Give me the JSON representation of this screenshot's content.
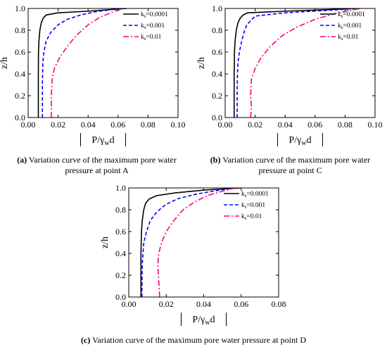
{
  "figure": {
    "captions": [
      {
        "letter": "(a)",
        "text_line1": " Variation curve of the maximum pore water",
        "text_line2": "pressure at point A"
      },
      {
        "letter": "(b)",
        "text_line1": " Variation curve of the maximum pore water",
        "text_line2": "pressure at point C"
      },
      {
        "letter": "(c)",
        "text_line1": " Variation curve of the maximum pore water pressure at point D",
        "text_line2": ""
      }
    ]
  },
  "chart_data": [
    {
      "type": "line",
      "title": "",
      "xlabel": "|P/γ_w d|",
      "xlabel_parts": {
        "main": "P/γ",
        "sub": "w",
        "tail": "d"
      },
      "ylabel": "z/h",
      "xlim": [
        0,
        0.1
      ],
      "ylim": [
        0,
        1.0
      ],
      "xticks": [
        "0.00",
        "0.02",
        "0.04",
        "0.06",
        "0.08",
        "0.10"
      ],
      "yticks": [
        "0.0",
        "0.2",
        "0.4",
        "0.6",
        "0.8",
        "1.0"
      ],
      "grid": false,
      "legend_position": "top-right",
      "series": [
        {
          "name": "ks=0.0001",
          "legend_main": "k",
          "legend_sub": "s",
          "legend_tail": "=0.0001",
          "color": "#000000",
          "dash": "solid",
          "x": [
            0.0068,
            0.0068,
            0.0069,
            0.0072,
            0.0078,
            0.0088,
            0.01,
            0.012,
            0.02,
            0.04,
            0.055,
            0.066
          ],
          "y": [
            0.0,
            0.4,
            0.6,
            0.7,
            0.8,
            0.87,
            0.91,
            0.94,
            0.96,
            0.975,
            0.99,
            1.0
          ]
        },
        {
          "name": "ks=0.001",
          "legend_main": "k",
          "legend_sub": "s",
          "legend_tail": "=0.001",
          "color": "#0000ff",
          "dash": "dashed",
          "x": [
            0.0095,
            0.0095,
            0.0098,
            0.0105,
            0.012,
            0.015,
            0.02,
            0.026,
            0.035,
            0.045,
            0.056,
            0.064
          ],
          "y": [
            0.0,
            0.3,
            0.5,
            0.6,
            0.7,
            0.78,
            0.85,
            0.9,
            0.94,
            0.97,
            0.99,
            1.0
          ]
        },
        {
          "name": "ks=0.01",
          "legend_main": "k",
          "legend_sub": "s",
          "legend_tail": "=0.01",
          "color": "#ff007f",
          "dash": "dashdot",
          "x": [
            0.0155,
            0.0155,
            0.016,
            0.0175,
            0.021,
            0.026,
            0.032,
            0.04,
            0.048,
            0.057,
            0.063
          ],
          "y": [
            0.0,
            0.2,
            0.35,
            0.45,
            0.55,
            0.65,
            0.75,
            0.85,
            0.92,
            0.97,
            1.0
          ]
        }
      ]
    },
    {
      "type": "line",
      "title": "",
      "xlabel": "|P/γ_w d|",
      "xlabel_parts": {
        "main": "P/γ",
        "sub": "w",
        "tail": "d"
      },
      "ylabel": "z/h",
      "xlim": [
        0,
        0.1
      ],
      "ylim": [
        0,
        1.0
      ],
      "xticks": [
        "0.00",
        "0.02",
        "0.04",
        "0.06",
        "0.08",
        "0.10"
      ],
      "yticks": [
        "0.0",
        "0.2",
        "0.4",
        "0.6",
        "0.8",
        "1.0"
      ],
      "grid": false,
      "legend_position": "top-right",
      "series": [
        {
          "name": "ks=0.0001",
          "legend_main": "k",
          "legend_sub": "s",
          "legend_tail": "=0.0001",
          "color": "#000000",
          "dash": "solid",
          "x": [
            0.006,
            0.006,
            0.0062,
            0.0066,
            0.0074,
            0.0086,
            0.01,
            0.012,
            0.015,
            0.04,
            0.07,
            0.085
          ],
          "y": [
            0.0,
            0.4,
            0.6,
            0.7,
            0.8,
            0.87,
            0.91,
            0.94,
            0.96,
            0.975,
            0.99,
            1.0
          ]
        },
        {
          "name": "ks=0.001",
          "legend_main": "k",
          "legend_sub": "s",
          "legend_tail": "=0.001",
          "color": "#0000ff",
          "dash": "dashed",
          "x": [
            0.008,
            0.008,
            0.0085,
            0.0095,
            0.011,
            0.013,
            0.0145,
            0.02,
            0.04,
            0.065,
            0.09
          ],
          "y": [
            0.0,
            0.3,
            0.5,
            0.6,
            0.7,
            0.8,
            0.85,
            0.93,
            0.96,
            0.98,
            1.0
          ]
        },
        {
          "name": "ks=0.01",
          "legend_main": "k",
          "legend_sub": "s",
          "legend_tail": "=0.01",
          "color": "#ff007f",
          "dash": "dashdot",
          "x": [
            0.017,
            0.0175,
            0.017,
            0.0175,
            0.02,
            0.024,
            0.03,
            0.038,
            0.048,
            0.06,
            0.075,
            0.09
          ],
          "y": [
            0.0,
            0.1,
            0.2,
            0.35,
            0.45,
            0.55,
            0.65,
            0.75,
            0.83,
            0.9,
            0.96,
            1.0
          ]
        }
      ]
    },
    {
      "type": "line",
      "title": "",
      "xlabel": "|P/γ_w d|",
      "xlabel_parts": {
        "main": "P/γ",
        "sub": "w",
        "tail": "d"
      },
      "ylabel": "z/h",
      "xlim": [
        0,
        0.08
      ],
      "ylim": [
        0,
        1.0
      ],
      "xticks": [
        "0.00",
        "0.02",
        "0.04",
        "0.06",
        "0.08"
      ],
      "yticks": [
        "0.0",
        "0.2",
        "0.4",
        "0.6",
        "0.8",
        "1.0"
      ],
      "grid": false,
      "legend_position": "top-right",
      "series": [
        {
          "name": "ks=0.0001",
          "legend_main": "k",
          "legend_sub": "s",
          "legend_tail": "=0.0001",
          "color": "#000000",
          "dash": "solid",
          "x": [
            0.0065,
            0.0065,
            0.0068,
            0.0072,
            0.008,
            0.009,
            0.011,
            0.015,
            0.025,
            0.04,
            0.06
          ],
          "y": [
            0.0,
            0.4,
            0.6,
            0.7,
            0.8,
            0.86,
            0.9,
            0.93,
            0.955,
            0.98,
            1.0
          ]
        },
        {
          "name": "ks=0.001",
          "legend_main": "k",
          "legend_sub": "s",
          "legend_tail": "=0.001",
          "color": "#0000ff",
          "dash": "dashed",
          "x": [
            0.007,
            0.0072,
            0.008,
            0.0095,
            0.0115,
            0.014,
            0.017,
            0.02,
            0.026,
            0.035,
            0.045,
            0.056
          ],
          "y": [
            0.0,
            0.3,
            0.5,
            0.6,
            0.7,
            0.76,
            0.81,
            0.85,
            0.9,
            0.94,
            0.97,
            1.0
          ]
        },
        {
          "name": "ks=0.01",
          "legend_main": "k",
          "legend_sub": "s",
          "legend_tail": "=0.01",
          "color": "#ff007f",
          "dash": "dashdot",
          "x": [
            0.0165,
            0.016,
            0.0155,
            0.016,
            0.0175,
            0.02,
            0.024,
            0.029,
            0.035,
            0.042,
            0.05,
            0.057
          ],
          "y": [
            0.0,
            0.15,
            0.3,
            0.4,
            0.5,
            0.6,
            0.7,
            0.8,
            0.87,
            0.93,
            0.97,
            1.0
          ]
        }
      ]
    }
  ]
}
